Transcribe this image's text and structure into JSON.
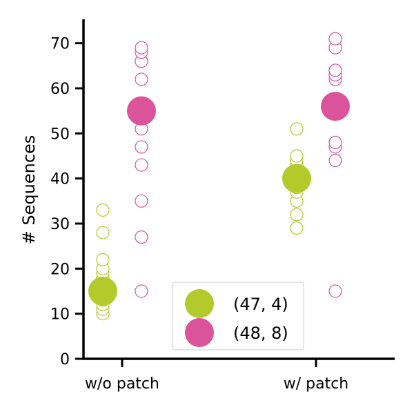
{
  "chart_data": {
    "type": "scatter",
    "xlabel": "",
    "ylabel": "# Sequences",
    "categories": [
      "w/o patch",
      "w/ patch"
    ],
    "yticks": [
      0,
      10,
      20,
      30,
      40,
      50,
      60,
      70
    ],
    "ylim": [
      0,
      75
    ],
    "grid": false,
    "legend_position": "lower-center",
    "series": [
      {
        "name": "(47, 4)",
        "color": "#b2cb2a",
        "mean": [
          15,
          40
        ],
        "points": [
          [
            10,
            11,
            12,
            13,
            14,
            15,
            16,
            17,
            18,
            19,
            20,
            22,
            28,
            33
          ],
          [
            29,
            32,
            35,
            37,
            38,
            39,
            40,
            41,
            42,
            43,
            44,
            45,
            51
          ]
        ]
      },
      {
        "name": "(48, 8)",
        "color": "#db539a",
        "mean": [
          55,
          56
        ],
        "points": [
          [
            15,
            27,
            35,
            43,
            47,
            51,
            55,
            62,
            66,
            68,
            69
          ],
          [
            15,
            44,
            47,
            48,
            62,
            63,
            64,
            69,
            71
          ]
        ]
      }
    ]
  }
}
